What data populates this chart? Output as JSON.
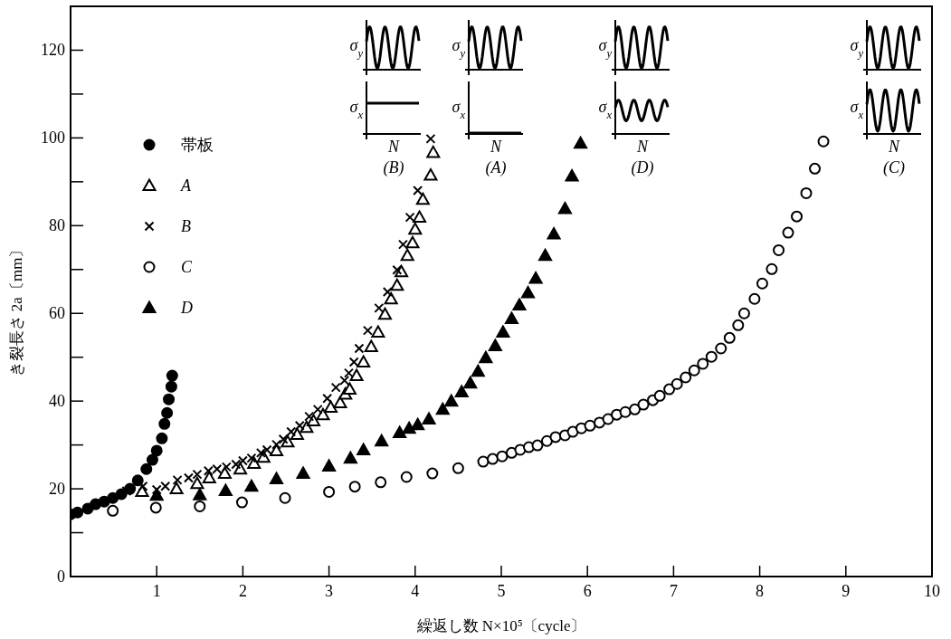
{
  "chart_data": {
    "type": "scatter",
    "xlabel": "繰返し数 N×10⁵〔cycle〕",
    "ylabel": "き裂長さ 2a〔mm〕",
    "xlim": [
      0,
      10
    ],
    "ylim": [
      0,
      130
    ],
    "xticks": [
      1,
      2,
      3,
      4,
      5,
      6,
      7,
      8,
      9,
      10
    ],
    "yticks": [
      0,
      {
        "value": 10,
        "label": null
      },
      20,
      {
        "value": 30,
        "label": null
      },
      40,
      {
        "value": 50,
        "label": null
      },
      60,
      {
        "value": 70,
        "label": null
      },
      80,
      {
        "value": 90,
        "label": null
      },
      100,
      {
        "value": 110,
        "label": null
      },
      120
    ],
    "grid": false,
    "legend": "top left",
    "annotations": [
      "σ$_{y}$",
      "σ$_{x}$",
      "N",
      "(B)",
      "σ$_{y}$",
      "σ$_{x}$",
      "N",
      "(A)",
      "σ$_{y}$",
      "σ$_{x}$",
      "N",
      "(D)",
      "σ$_{y}$",
      "σ$_{x}$",
      "N",
      "(C)"
    ],
    "series": [
      {
        "name": "帯板",
        "color": "#000000",
        "marker": "circle",
        "x": [
          0,
          0.08,
          0.2,
          0.29,
          0.39,
          0.49,
          0.59,
          0.69,
          0.78,
          0.88,
          0.95,
          1.0,
          1.06,
          1.09,
          1.12,
          1.14,
          1.17,
          1.18
        ],
        "values": [
          14.2,
          14.6,
          15.5,
          16.5,
          17.1,
          17.9,
          18.8,
          20,
          21.9,
          24.5,
          26.6,
          28.7,
          31.5,
          34.8,
          37.3,
          40.4,
          43.3,
          45.8
        ]
      },
      {
        "name": "A",
        "color": "#ffffff",
        "marker": "triangle",
        "x": [
          0.83,
          1.23,
          1.47,
          1.61,
          1.79,
          1.97,
          2.13,
          2.24,
          2.39,
          2.52,
          2.63,
          2.74,
          2.82,
          2.93,
          3.02,
          3.13,
          3.19,
          3.24,
          3.32,
          3.4,
          3.49,
          3.57,
          3.65,
          3.72,
          3.79,
          3.84,
          3.91,
          3.97,
          4.0,
          4.05,
          4.09,
          4.18,
          4.21
        ],
        "values": [
          19.4,
          20,
          21.2,
          22.5,
          23.5,
          24.5,
          25.8,
          27.2,
          28.7,
          30.7,
          32.4,
          34,
          35.5,
          36.9,
          38.6,
          39.6,
          41.6,
          42.7,
          45.8,
          48.9,
          52.4,
          55.7,
          59.8,
          63.3,
          66.4,
          69.5,
          73.2,
          76.1,
          79.2,
          81.9,
          86,
          91.5,
          96.7
        ]
      },
      {
        "name": "B",
        "color": "#000000",
        "marker": "cross",
        "x": [
          0.65,
          0.84,
          1.0,
          1.1,
          1.24,
          1.37,
          1.47,
          1.6,
          1.7,
          1.81,
          1.92,
          2.0,
          2.1,
          2.21,
          2.28,
          2.39,
          2.47,
          2.56,
          2.66,
          2.77,
          2.87,
          2.98,
          3.08,
          3.18,
          3.23,
          3.29,
          3.35,
          3.45,
          3.58,
          3.68,
          3.79,
          3.86,
          3.94,
          4.03,
          4.18
        ],
        "values": [
          19.5,
          20.6,
          19.8,
          20.6,
          22,
          22.5,
          23.3,
          24.1,
          24.5,
          25,
          25.6,
          26.4,
          27,
          28.2,
          28.9,
          30.1,
          31.3,
          33,
          34.4,
          36.5,
          38.1,
          40.6,
          43.1,
          44.7,
          46.4,
          48.9,
          52,
          56.1,
          61.2,
          64.9,
          69.9,
          75.7,
          81.9,
          88,
          99.8
        ]
      },
      {
        "name": "C",
        "color": "#ffffff",
        "marker": "circle",
        "x": [
          0.49,
          0.99,
          1.5,
          1.99,
          2.49,
          3.0,
          3.3,
          3.6,
          3.9,
          4.2,
          4.5,
          4.79,
          4.9,
          5.01,
          5.12,
          5.22,
          5.32,
          5.42,
          5.53,
          5.63,
          5.74,
          5.83,
          5.93,
          6.03,
          6.14,
          6.24,
          6.34,
          6.44,
          6.55,
          6.65,
          6.76,
          6.84,
          6.95,
          7.04,
          7.14,
          7.24,
          7.34,
          7.44,
          7.55,
          7.65,
          7.75,
          7.82,
          7.94,
          8.03,
          8.14,
          8.22,
          8.33,
          8.43,
          8.54,
          8.64,
          8.74
        ],
        "values": [
          15,
          15.7,
          16,
          16.9,
          17.9,
          19.3,
          20.5,
          21.5,
          22.7,
          23.5,
          24.7,
          26.2,
          26.8,
          27.4,
          28.2,
          28.9,
          29.5,
          29.9,
          30.9,
          31.8,
          32.2,
          33,
          33.8,
          34.4,
          35.1,
          35.9,
          36.9,
          37.5,
          38.1,
          39.2,
          40.2,
          41.2,
          42.7,
          43.9,
          45.4,
          47,
          48.5,
          50.1,
          52,
          54.4,
          57.3,
          60,
          63.3,
          66.8,
          70.1,
          74.4,
          78.4,
          82.1,
          87.4,
          93,
          99.2
        ]
      },
      {
        "name": "D",
        "color": "#000000",
        "marker": "triangle",
        "x": [
          1.0,
          1.5,
          1.8,
          2.1,
          2.39,
          2.7,
          3.0,
          3.25,
          3.4,
          3.61,
          3.82,
          3.93,
          4.03,
          4.16,
          4.32,
          4.42,
          4.54,
          4.64,
          4.73,
          4.82,
          4.93,
          5.02,
          5.12,
          5.21,
          5.31,
          5.4,
          5.51,
          5.61,
          5.74,
          5.82,
          5.92
        ],
        "values": [
          18.5,
          18.6,
          19.6,
          20.6,
          22.3,
          23.5,
          25.2,
          27,
          28.9,
          30.9,
          32.8,
          33.8,
          34.6,
          35.9,
          38.1,
          40,
          42.1,
          44.1,
          46.8,
          49.9,
          52.6,
          55.7,
          58.8,
          61.9,
          64.7,
          68,
          73.2,
          78.1,
          83.9,
          91.3,
          98.8
        ]
      }
    ]
  }
}
